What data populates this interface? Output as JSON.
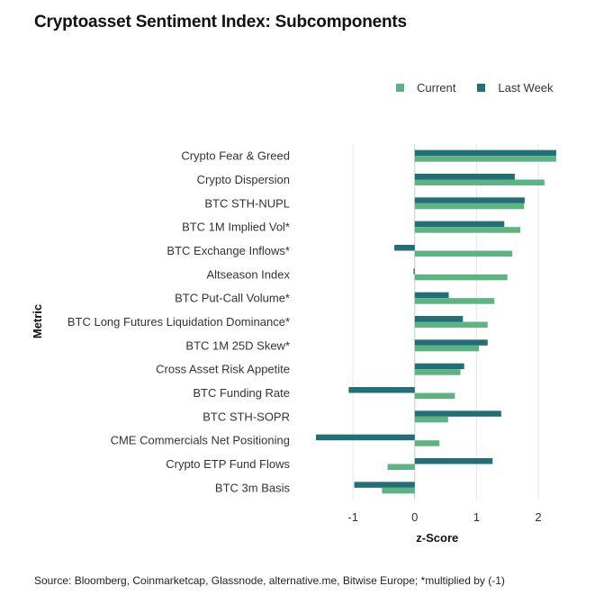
{
  "title": "Cryptoasset Sentiment Index: Subcomponents",
  "source": "Source: Bloomberg, Coinmarketcap, Glassnode, alternative.me, Bitwise Europe; *multiplied by (-1)",
  "colors": {
    "current": "#5db382",
    "last_week": "#236f78",
    "grid": "#e6e6e6",
    "zero": "#c9c9c9"
  },
  "chart_data": {
    "type": "bar",
    "orientation": "horizontal",
    "title": "Cryptoasset Sentiment Index: Subcomponents",
    "xlabel": "z-Score",
    "ylabel": "Metric",
    "xlim": [
      -1.6,
      2.35
    ],
    "xticks": [
      -1,
      0,
      1,
      2
    ],
    "grid": true,
    "legend_position": "top-right",
    "categories": [
      "Crypto Fear & Greed",
      "Crypto Dispersion",
      "BTC STH-NUPL",
      "BTC 1M Implied Vol*",
      "BTC Exchange Inflows*",
      "Altseason Index",
      "BTC Put-Call Volume*",
      "BTC Long Futures Liquidation Dominance*",
      "BTC 1M 25D Skew*",
      "Cross Asset Risk Appetite",
      "BTC Funding Rate",
      "BTC STH-SOPR",
      "CME Commercials Net Positioning",
      "Crypto ETP Fund Flows",
      "BTC 3m Basis"
    ],
    "series": [
      {
        "name": "Last Week",
        "values": [
          2.29,
          1.62,
          1.78,
          1.45,
          -0.33,
          -0.02,
          0.55,
          0.78,
          1.18,
          0.8,
          -1.07,
          1.4,
          -1.6,
          1.26,
          -0.98
        ]
      },
      {
        "name": "Current",
        "values": [
          2.29,
          2.1,
          1.77,
          1.71,
          1.58,
          1.5,
          1.29,
          1.18,
          1.04,
          0.74,
          0.65,
          0.54,
          0.4,
          -0.44,
          -0.53
        ]
      }
    ]
  }
}
